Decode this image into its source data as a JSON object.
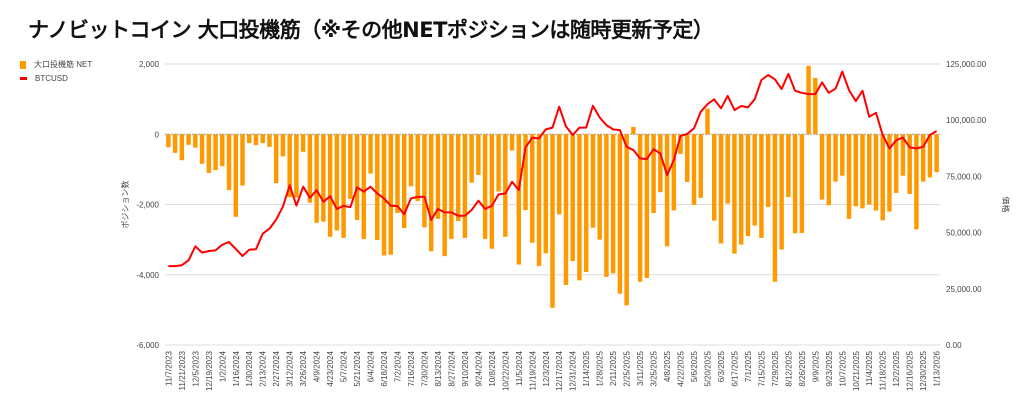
{
  "title": "ナノビットコイン 大口投機筋（※その他NETポジションは随時更新予定）",
  "chart_data": {
    "type": "bar+line",
    "title": "ナノビットコイン 大口投機筋（※その他NETポジションは随時更新予定）",
    "legend_position": "top-left",
    "grid": true,
    "y_left": {
      "label": "ポジション数",
      "range": [
        -6000,
        2000
      ],
      "ticks": [
        2000,
        0,
        -2000,
        -4000,
        -6000
      ],
      "tick_labels": [
        "2,000",
        "0",
        "-2,000",
        "-4,000",
        "-6,000"
      ]
    },
    "y_right": {
      "label": "価格",
      "range": [
        0,
        125000
      ],
      "ticks": [
        125000,
        100000,
        75000,
        50000,
        25000,
        0
      ],
      "tick_labels": [
        "125,000.00",
        "100,000.00",
        "75,000.00",
        "50,000.00",
        "25,000.00",
        "0.00"
      ]
    },
    "x_tick_labels": [
      "11/7/2023",
      "11/21/2023",
      "12/5/2023",
      "12/19/2023",
      "1/2/2024",
      "1/16/2024",
      "1/30/2024",
      "2/13/2024",
      "2/27/2024",
      "3/12/2024",
      "3/26/2024",
      "4/9/2024",
      "4/23/2024",
      "5/7/2024",
      "5/21/2024",
      "6/4/2024",
      "6/18/2024",
      "7/2/2024",
      "7/16/2024",
      "7/30/2024",
      "8/13/2024",
      "8/27/2024",
      "9/10/2024",
      "9/24/2024",
      "10/8/2024",
      "10/22/2024",
      "11/5/2024",
      "11/19/2024",
      "12/3/2024",
      "12/17/2024",
      "12/31/2024",
      "1/14/2025",
      "1/28/2025",
      "2/11/2025",
      "2/25/2025",
      "3/11/2025",
      "3/25/2025",
      "4/8/2025",
      "4/22/2025",
      "5/6/2025",
      "5/20/2025",
      "6/3/2025",
      "6/17/2025",
      "7/1/2025",
      "7/15/2025",
      "7/29/2025",
      "8/12/2025",
      "8/26/2025",
      "9/9/2025",
      "9/23/2025",
      "10/7/2025",
      "10/21/2025",
      "11/4/2025",
      "11/18/2025",
      "12/2/2025",
      "12/16/2025",
      "12/30/2025",
      "1/13/2026"
    ],
    "x_note": "weekly data, every other week labeled",
    "series": [
      {
        "name": "大口投機筋  NET",
        "type": "bar",
        "axis": "left",
        "color": "#ff9900",
        "values": [
          -370,
          -530,
          -740,
          -300,
          -380,
          -840,
          -1100,
          -1020,
          -910,
          -1590,
          -2350,
          -1460,
          -250,
          -310,
          -250,
          -360,
          -1390,
          -630,
          -1790,
          -1800,
          -500,
          -1950,
          -2520,
          -2490,
          -2920,
          -2740,
          -2950,
          -1840,
          -2440,
          -2980,
          -1120,
          -3010,
          -3450,
          -3430,
          -2240,
          -2670,
          -1480,
          -1900,
          -2650,
          -3330,
          -2410,
          -3470,
          -2980,
          -2470,
          -2950,
          -1380,
          -1160,
          -2980,
          -3260,
          -1630,
          -2920,
          -460,
          -3710,
          -2160,
          -3090,
          -3750,
          -3390,
          -4940,
          -2280,
          -4290,
          -3610,
          -4160,
          -3920,
          -2660,
          -3000,
          -4060,
          -3960,
          -4540,
          -4870,
          210,
          -4200,
          -4090,
          -2240,
          -1650,
          -3190,
          -2170,
          -560,
          -1360,
          -2010,
          -1810,
          730,
          -2460,
          -3110,
          -1970,
          -3400,
          -3140,
          -2900,
          -2600,
          -2950,
          -2070,
          -4200,
          -3280,
          -1790,
          -2820,
          -2810,
          1950,
          1600,
          -1860,
          -2020,
          -1350,
          -1180,
          -2410,
          -2050,
          -2110,
          -2000,
          -2170,
          -2450,
          -2200,
          -1670,
          -1180,
          -1700,
          -2710,
          -1350,
          -1230,
          -1080
        ]
      },
      {
        "name": "BTCUSD",
        "type": "line",
        "axis": "right",
        "color": "#ff0000",
        "values": [
          35100,
          35100,
          35500,
          37700,
          43900,
          41100,
          41800,
          42100,
          44600,
          45800,
          42700,
          39600,
          42400,
          42600,
          49500,
          51800,
          55800,
          61500,
          71100,
          62000,
          70400,
          65500,
          68900,
          63700,
          66200,
          60500,
          61900,
          61300,
          70100,
          68200,
          70400,
          67400,
          65200,
          61900,
          61800,
          58200,
          65200,
          65900,
          65900,
          55600,
          60500,
          59000,
          59000,
          57500,
          57500,
          60000,
          64200,
          60500,
          61900,
          67000,
          67400,
          72600,
          68900,
          87900,
          92200,
          91900,
          95900,
          96700,
          106000,
          97200,
          93400,
          96700,
          96700,
          106400,
          101200,
          97800,
          95900,
          95600,
          88200,
          86700,
          83000,
          82700,
          87100,
          85200,
          75600,
          82200,
          93000,
          93900,
          96400,
          103800,
          107100,
          109300,
          105300,
          110800,
          104500,
          106300,
          105700,
          109300,
          117900,
          120100,
          118200,
          113900,
          120600,
          113100,
          112200,
          111600,
          111600,
          116800,
          112200,
          114000,
          121600,
          113400,
          108500,
          113100,
          101500,
          103300,
          93400,
          87400,
          91100,
          92300,
          87900,
          87400,
          88200,
          93400,
          95200
        ]
      }
    ]
  }
}
